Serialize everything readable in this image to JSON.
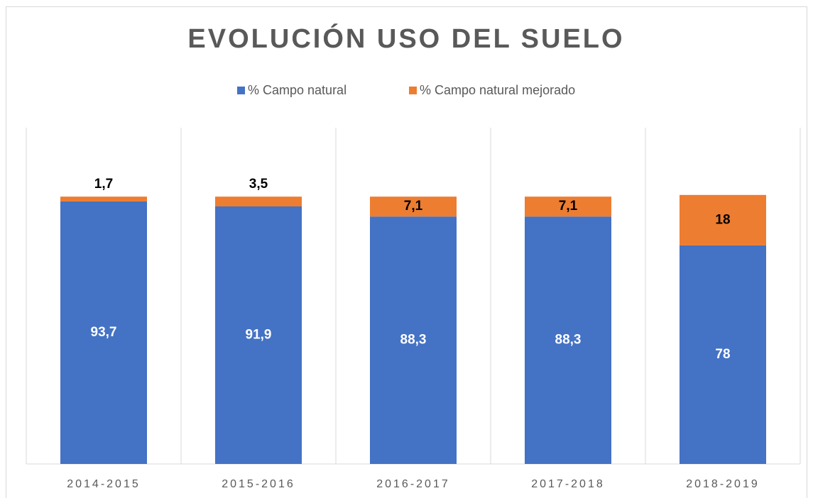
{
  "chart_data": {
    "type": "stacked_bar",
    "title": "EVOLUCIÓN USO DEL SUELO",
    "categories": [
      "2014-2015",
      "2015-2016",
      "2016-2017",
      "2017-2018",
      "2018-2019"
    ],
    "series": [
      {
        "name": "% Campo natural",
        "color": "#4472c4",
        "values": [
          93.7,
          91.9,
          88.3,
          88.3,
          78
        ],
        "value_labels": [
          "93,7",
          "91,9",
          "88,3",
          "88,3",
          "78"
        ]
      },
      {
        "name": "% Campo natural mejorado",
        "color": "#ed7d31",
        "values": [
          1.7,
          3.5,
          7.1,
          7.1,
          18
        ],
        "value_labels": [
          "1,7",
          "3,5",
          "7,1",
          "7,1",
          "18"
        ]
      }
    ],
    "ylim": [
      0,
      120
    ],
    "legend": "top"
  }
}
